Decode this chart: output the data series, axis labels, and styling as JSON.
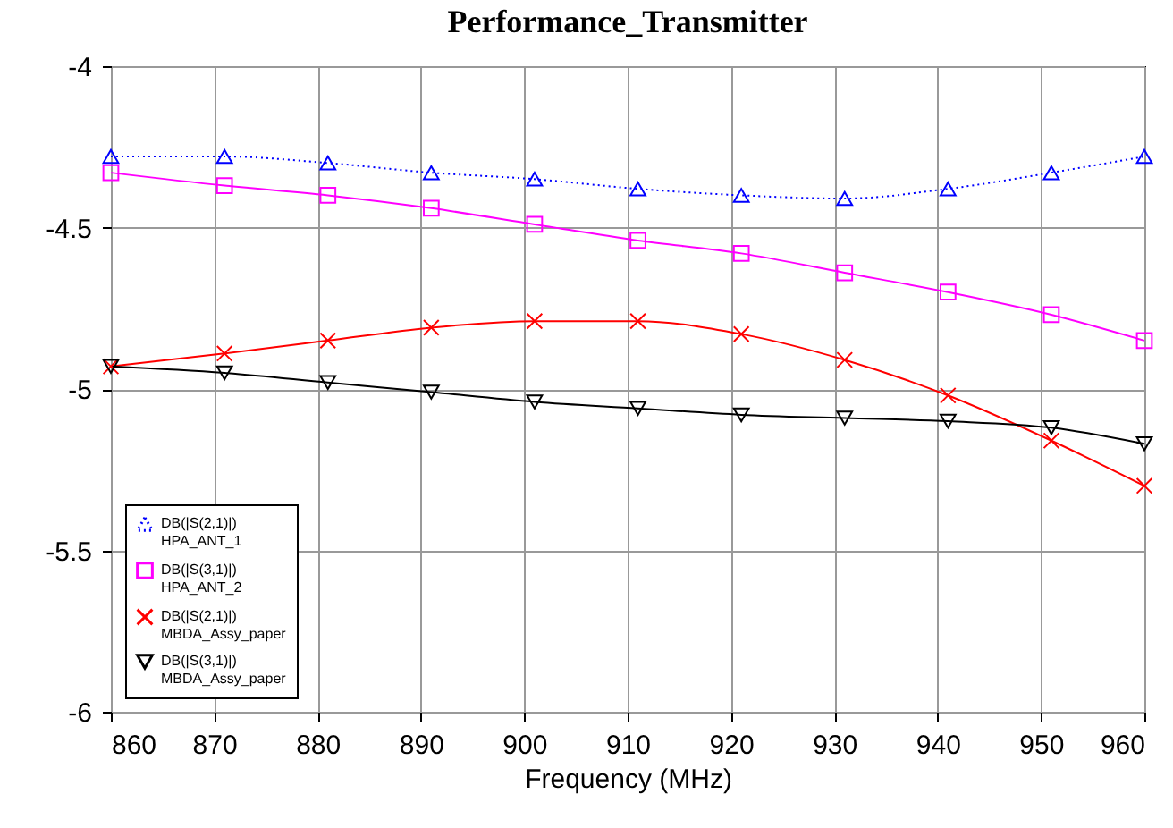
{
  "chart_data": {
    "type": "line",
    "title": "Performance_Transmitter",
    "xlabel": "Frequency (MHz)",
    "x": [
      860,
      871,
      881,
      891,
      901,
      911,
      921,
      931,
      941,
      951,
      960
    ],
    "xlim": [
      860,
      960
    ],
    "xticks": [
      860,
      870,
      880,
      890,
      900,
      910,
      920,
      930,
      940,
      950,
      960
    ],
    "ylim": [
      -6,
      -4
    ],
    "yticks": [
      -6,
      -5.5,
      -5,
      -4.5,
      -4
    ],
    "grid": true,
    "legend": "bottom left",
    "series": [
      {
        "name": "DB(|S(2,1)|)\nHPA_ANT_1",
        "color": "#0000ff",
        "marker": "triangle",
        "line_style": "dotted",
        "values": [
          -4.28,
          -4.28,
          -4.3,
          -4.33,
          -4.35,
          -4.38,
          -4.4,
          -4.41,
          -4.38,
          -4.33,
          -4.28
        ]
      },
      {
        "name": "DB(|S(3,1)|)\nHPA_ANT_2",
        "color": "#ff00ff",
        "marker": "square",
        "line_style": "solid",
        "values": [
          -4.33,
          -4.37,
          -4.4,
          -4.44,
          -4.49,
          -4.54,
          -4.58,
          -4.64,
          -4.7,
          -4.77,
          -4.85
        ]
      },
      {
        "name": "DB(|S(2,1)|)\nMBDA_Assy_paper",
        "color": "#ff0000",
        "marker": "cross",
        "line_style": "solid",
        "values": [
          -4.93,
          -4.89,
          -4.85,
          -4.81,
          -4.79,
          -4.79,
          -4.83,
          -4.91,
          -5.02,
          -5.16,
          -5.3
        ]
      },
      {
        "name": "DB(|S(3,1)|)\nMBDA_Assy_paper",
        "color": "#000000",
        "marker": "triangle-down",
        "line_style": "solid",
        "values": [
          -4.93,
          -4.95,
          -4.98,
          -5.01,
          -5.04,
          -5.06,
          -5.08,
          -5.09,
          -5.1,
          -5.12,
          -5.17
        ]
      }
    ]
  }
}
